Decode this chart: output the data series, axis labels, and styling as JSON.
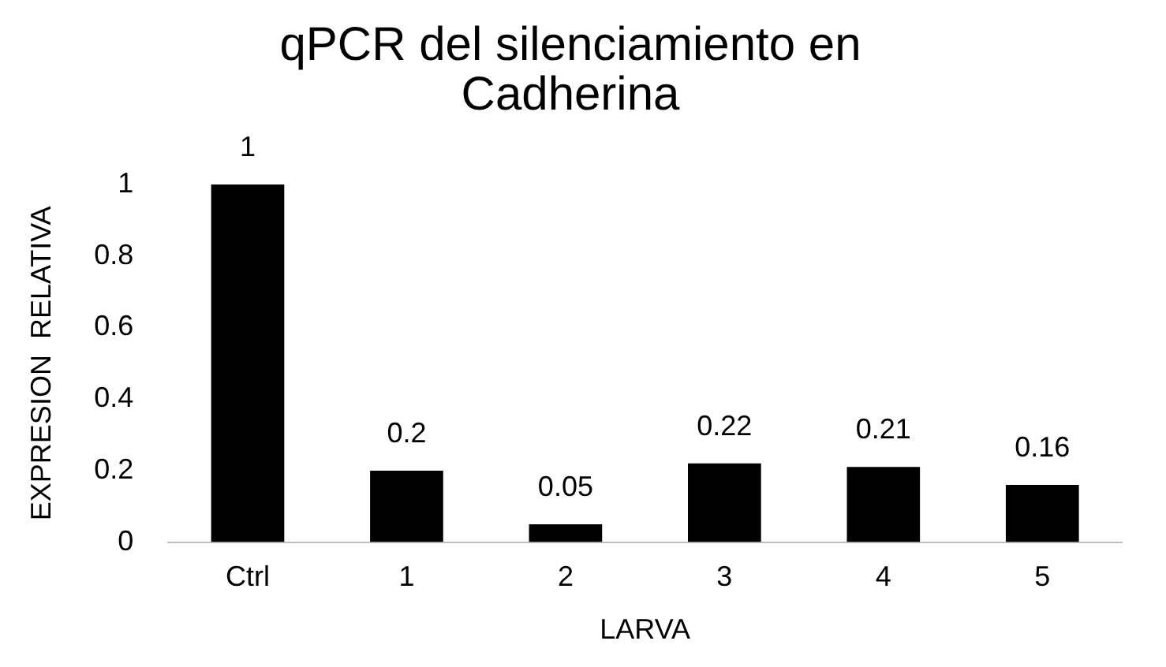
{
  "chart_data": {
    "type": "bar",
    "title": "qPCR del silenciamiento en Cadherina",
    "xlabel": "LARVA",
    "ylabel": "EXPRESION  RELATIVA",
    "categories": [
      "Ctrl",
      "1",
      "2",
      "3",
      "4",
      "5"
    ],
    "values": [
      1,
      0.2,
      0.05,
      0.22,
      0.21,
      0.16
    ],
    "color": "#000000",
    "ylim": [
      0,
      1
    ],
    "yticks": [
      0,
      0.2,
      0.4,
      0.6,
      0.8,
      1
    ],
    "grid": false,
    "legend": false,
    "data_labels": true
  }
}
